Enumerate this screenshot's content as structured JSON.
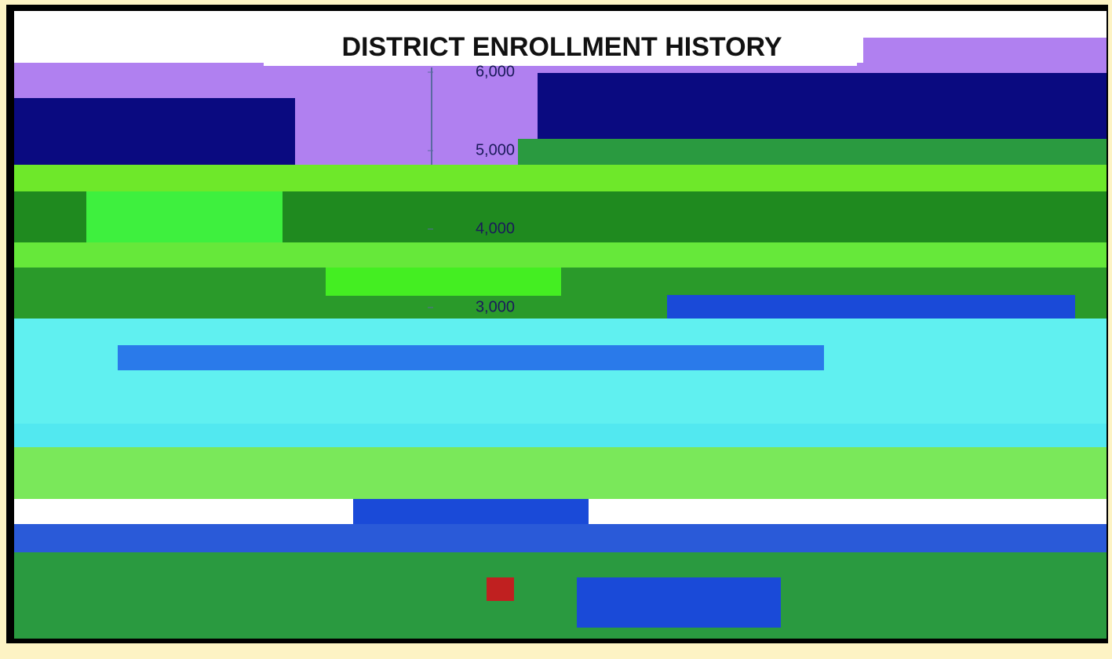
{
  "chart_data": {
    "type": "bar",
    "title": "DISTRICT ENROLLMENT HISTORY",
    "ylim": [
      3000,
      6000
    ],
    "yticks": [
      {
        "value": 3000,
        "label": "3,000"
      },
      {
        "value": 4000,
        "label": "4,000"
      },
      {
        "value": 5000,
        "label": "5,000"
      },
      {
        "value": 6000,
        "label": "6,000"
      }
    ]
  }
}
